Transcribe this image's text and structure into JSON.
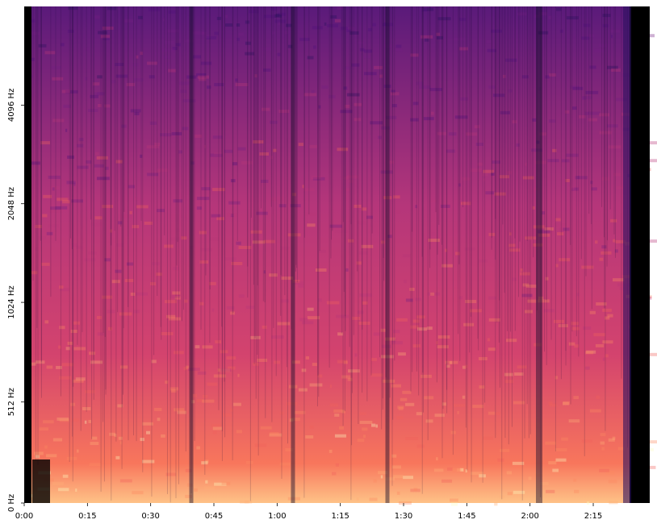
{
  "chart_data": {
    "type": "spectrogram",
    "xlim": [
      0,
      148.4
    ],
    "xticks": [
      {
        "value": 0,
        "label": "0:00"
      },
      {
        "value": 15,
        "label": "0:15"
      },
      {
        "value": 30,
        "label": "0:30"
      },
      {
        "value": 45,
        "label": "0:45"
      },
      {
        "value": 60,
        "label": "1:00"
      },
      {
        "value": 75,
        "label": "1:15"
      },
      {
        "value": 90,
        "label": "1:30"
      },
      {
        "value": 105,
        "label": "1:45"
      },
      {
        "value": 120,
        "label": "2:00"
      },
      {
        "value": 135,
        "label": "2:15"
      }
    ],
    "ylim": [
      0,
      8192
    ],
    "yscale": "symlog",
    "linthresh": 1000,
    "log_base": 2,
    "yticks": [
      {
        "value": 0,
        "label": "0 Hz"
      },
      {
        "value": 512,
        "label": "512 Hz"
      },
      {
        "value": 1024,
        "label": "1024 Hz"
      },
      {
        "value": 2048,
        "label": "2048 Hz"
      },
      {
        "value": 4096,
        "label": "4096 Hz"
      }
    ],
    "colormap": "magma"
  }
}
